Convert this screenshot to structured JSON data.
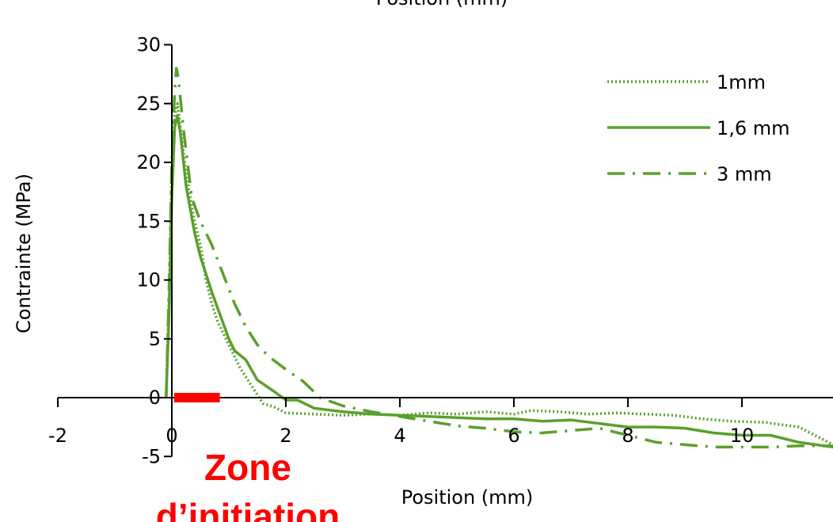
{
  "chart_data": {
    "type": "line",
    "top_title": "Position (mm)",
    "xlabel": "Position (mm)",
    "ylabel": "Contrainte (MPa)",
    "xlim": [
      -2,
      11.6
    ],
    "ylim": [
      -5,
      30
    ],
    "x_ticks": [
      "-2",
      "0",
      "2",
      "4",
      "6",
      "8",
      "10"
    ],
    "y_ticks": [
      "-5",
      "0",
      "5",
      "10",
      "15",
      "20",
      "25",
      "30"
    ],
    "grid": false,
    "legend_position": "top-right",
    "series_color": "#5aa02c",
    "series": [
      {
        "name": "1mm",
        "style": "dotted",
        "points": [
          [
            -0.1,
            0
          ],
          [
            -0.05,
            8
          ],
          [
            0,
            19
          ],
          [
            0.05,
            24
          ],
          [
            0.1,
            25
          ],
          [
            0.15,
            23
          ],
          [
            0.25,
            19
          ],
          [
            0.4,
            15
          ],
          [
            0.5,
            13
          ],
          [
            0.6,
            10
          ],
          [
            0.7,
            8
          ],
          [
            0.8,
            6.5
          ],
          [
            1.0,
            4.5
          ],
          [
            1.2,
            2.5
          ],
          [
            1.4,
            1.0
          ],
          [
            1.6,
            -0.5
          ],
          [
            1.8,
            -0.8
          ],
          [
            2.0,
            -1.3
          ],
          [
            2.5,
            -1.4
          ],
          [
            3.0,
            -1.5
          ],
          [
            3.5,
            -1.4
          ],
          [
            4.0,
            -1.5
          ],
          [
            4.5,
            -1.3
          ],
          [
            5.0,
            -1.4
          ],
          [
            5.5,
            -1.2
          ],
          [
            6.0,
            -1.4
          ],
          [
            6.3,
            -1.1
          ],
          [
            6.8,
            -1.2
          ],
          [
            7.3,
            -1.4
          ],
          [
            7.8,
            -1.3
          ],
          [
            8.3,
            -1.4
          ],
          [
            8.8,
            -1.5
          ],
          [
            9.3,
            -1.8
          ],
          [
            9.8,
            -2.0
          ],
          [
            10.4,
            -2.1
          ],
          [
            11.0,
            -2.5
          ],
          [
            11.6,
            -4.0
          ]
        ]
      },
      {
        "name": "1,6 mm",
        "style": "solid",
        "points": [
          [
            -0.1,
            0
          ],
          [
            -0.05,
            7
          ],
          [
            0,
            17
          ],
          [
            0.05,
            23
          ],
          [
            0.1,
            24
          ],
          [
            0.15,
            22.5
          ],
          [
            0.25,
            18
          ],
          [
            0.4,
            14
          ],
          [
            0.5,
            12
          ],
          [
            0.6,
            10.5
          ],
          [
            0.7,
            9
          ],
          [
            0.85,
            7
          ],
          [
            1.0,
            5
          ],
          [
            1.1,
            4
          ],
          [
            1.3,
            3.2
          ],
          [
            1.5,
            1.5
          ],
          [
            1.8,
            0.5
          ],
          [
            2.0,
            -0.2
          ],
          [
            2.2,
            -0.2
          ],
          [
            2.5,
            -0.9
          ],
          [
            3.0,
            -1.2
          ],
          [
            3.5,
            -1.4
          ],
          [
            4.0,
            -1.5
          ],
          [
            4.5,
            -1.6
          ],
          [
            5.0,
            -1.7
          ],
          [
            5.5,
            -1.8
          ],
          [
            6.0,
            -1.8
          ],
          [
            6.5,
            -2.0
          ],
          [
            7.0,
            -1.9
          ],
          [
            7.5,
            -2.2
          ],
          [
            8.0,
            -2.5
          ],
          [
            8.5,
            -2.5
          ],
          [
            9.0,
            -2.6
          ],
          [
            9.5,
            -3.0
          ],
          [
            10.0,
            -3.2
          ],
          [
            10.5,
            -3.2
          ],
          [
            11.0,
            -3.8
          ],
          [
            11.6,
            -4.2
          ]
        ]
      },
      {
        "name": "3 mm",
        "style": "dashdot",
        "points": [
          [
            -0.1,
            0
          ],
          [
            -0.05,
            9
          ],
          [
            0,
            20
          ],
          [
            0.05,
            26
          ],
          [
            0.08,
            28
          ],
          [
            0.12,
            27
          ],
          [
            0.2,
            23
          ],
          [
            0.35,
            17
          ],
          [
            0.5,
            15
          ],
          [
            0.7,
            13
          ],
          [
            0.9,
            10.5
          ],
          [
            1.1,
            8
          ],
          [
            1.3,
            6
          ],
          [
            1.5,
            4.5
          ],
          [
            1.7,
            3.5
          ],
          [
            2.0,
            2.4
          ],
          [
            2.3,
            1.4
          ],
          [
            2.6,
            0
          ],
          [
            3.0,
            -0.7
          ],
          [
            3.5,
            -1.2
          ],
          [
            4.0,
            -1.6
          ],
          [
            4.5,
            -2.0
          ],
          [
            5.0,
            -2.4
          ],
          [
            5.5,
            -2.6
          ],
          [
            6.0,
            -2.9
          ],
          [
            6.5,
            -3.0
          ],
          [
            7.0,
            -2.8
          ],
          [
            7.5,
            -2.6
          ],
          [
            8.0,
            -3.2
          ],
          [
            8.5,
            -3.8
          ],
          [
            9.0,
            -4.0
          ],
          [
            9.5,
            -4.2
          ],
          [
            10.0,
            -4.2
          ],
          [
            10.5,
            -4.2
          ],
          [
            11.0,
            -4.1
          ],
          [
            11.6,
            -4.1
          ]
        ]
      }
    ],
    "annotation": {
      "text_line1": "Zone",
      "text_line2": "d’initiation",
      "color": "#ff0000",
      "x_range": [
        0,
        0.8
      ]
    }
  }
}
